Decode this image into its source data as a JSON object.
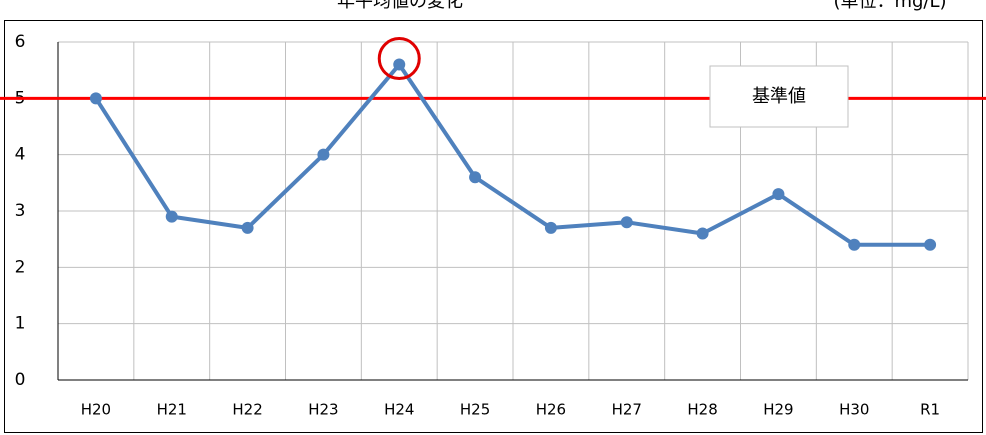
{
  "chart_data": {
    "type": "line",
    "title": "年平均値の変化",
    "unit_label": "(単位：mg/L)",
    "categories": [
      "H20",
      "H21",
      "H22",
      "H23",
      "H24",
      "H25",
      "H26",
      "H27",
      "H28",
      "H29",
      "H30",
      "R1"
    ],
    "series": [
      {
        "name": "年平均値",
        "color": "#4f81bd",
        "values": [
          5.0,
          2.9,
          2.7,
          4.0,
          5.6,
          3.6,
          2.7,
          2.8,
          2.6,
          3.3,
          2.4,
          2.4
        ]
      }
    ],
    "reference": {
      "label": "基準値",
      "value": 5,
      "color": "#ff0000"
    },
    "highlight": {
      "index": 4,
      "color": "#e00000"
    },
    "ylim": [
      0,
      6
    ],
    "yticks": [
      0,
      1,
      2,
      3,
      4,
      5,
      6
    ],
    "grid": true
  }
}
